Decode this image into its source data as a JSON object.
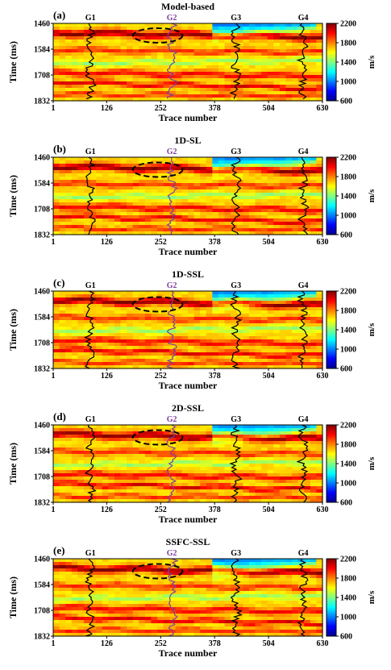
{
  "figure": {
    "colormap": [
      "#00008f",
      "#0000ff",
      "#0080ff",
      "#00ffff",
      "#80ff80",
      "#ffff00",
      "#ff8000",
      "#ff0000",
      "#800000"
    ]
  },
  "chart_data": [
    {
      "type": "heatmap",
      "panel_label": "(a)",
      "title": "Model-based",
      "xlabel": "Trace number",
      "ylabel": "Time (ms)",
      "x_ticks": [
        "1",
        "126",
        "252",
        "378",
        "504",
        "630"
      ],
      "y_ticks": [
        "1460",
        "1584",
        "1708",
        "1832"
      ],
      "xlim": [
        1,
        630
      ],
      "ylim": [
        1460,
        1832
      ],
      "colorbar": {
        "label": "m/s",
        "ticks": [
          "2200",
          "1800",
          "1400",
          "1000",
          "600"
        ],
        "range": [
          600,
          2200
        ]
      },
      "wells": [
        {
          "name": "G1",
          "trace": 88,
          "color": "#000000"
        },
        {
          "name": "G2",
          "trace": 278,
          "color": "#7b3fa0"
        },
        {
          "name": "G3",
          "trace": 428,
          "color": "#000000"
        },
        {
          "name": "G4",
          "trace": 585,
          "color": "#000000"
        }
      ],
      "ellipse": {
        "center_trace": 245,
        "center_time": 1518,
        "half_width_traces": 58,
        "half_height_ms": 35
      }
    },
    {
      "type": "heatmap",
      "panel_label": "(b)",
      "title": "1D-SL",
      "xlabel": "Trace number",
      "ylabel": "Time (ms)",
      "x_ticks": [
        "1",
        "126",
        "252",
        "378",
        "504",
        "630"
      ],
      "y_ticks": [
        "1460",
        "1584",
        "1708",
        "1832"
      ],
      "xlim": [
        1,
        630
      ],
      "ylim": [
        1460,
        1832
      ],
      "colorbar": {
        "label": "m/s",
        "ticks": [
          "2200",
          "1800",
          "1400",
          "1000",
          "600"
        ],
        "range": [
          600,
          2200
        ]
      },
      "wells": [
        {
          "name": "G1",
          "trace": 88,
          "color": "#000000"
        },
        {
          "name": "G2",
          "trace": 278,
          "color": "#7b3fa0"
        },
        {
          "name": "G3",
          "trace": 428,
          "color": "#000000"
        },
        {
          "name": "G4",
          "trace": 585,
          "color": "#000000"
        }
      ],
      "ellipse": {
        "center_trace": 245,
        "center_time": 1520,
        "half_width_traces": 58,
        "half_height_ms": 35
      }
    },
    {
      "type": "heatmap",
      "panel_label": "(c)",
      "title": "1D-SSL",
      "xlabel": "Trace number",
      "ylabel": "Time (ms)",
      "x_ticks": [
        "1",
        "126",
        "252",
        "378",
        "504",
        "630"
      ],
      "y_ticks": [
        "1460",
        "1584",
        "1708",
        "1832"
      ],
      "xlim": [
        1,
        630
      ],
      "ylim": [
        1460,
        1832
      ],
      "colorbar": {
        "label": "m/s",
        "ticks": [
          "2200",
          "1800",
          "1400",
          "1000",
          "600"
        ],
        "range": [
          600,
          2200
        ]
      },
      "wells": [
        {
          "name": "G1",
          "trace": 88,
          "color": "#000000"
        },
        {
          "name": "G2",
          "trace": 278,
          "color": "#7b3fa0"
        },
        {
          "name": "G3",
          "trace": 428,
          "color": "#000000"
        },
        {
          "name": "G4",
          "trace": 585,
          "color": "#000000"
        }
      ],
      "ellipse": {
        "center_trace": 245,
        "center_time": 1524,
        "half_width_traces": 58,
        "half_height_ms": 35
      }
    },
    {
      "type": "heatmap",
      "panel_label": "(d)",
      "title": "2D-SSL",
      "xlabel": "Trace number",
      "ylabel": "Time (ms)",
      "x_ticks": [
        "1",
        "126",
        "252",
        "378",
        "504",
        "630"
      ],
      "y_ticks": [
        "1460",
        "1584",
        "1708",
        "1832"
      ],
      "xlim": [
        1,
        630
      ],
      "ylim": [
        1460,
        1832
      ],
      "colorbar": {
        "label": "m/s",
        "ticks": [
          "2200",
          "1800",
          "1400",
          "1000",
          "600"
        ],
        "range": [
          600,
          2200
        ]
      },
      "wells": [
        {
          "name": "G1",
          "trace": 88,
          "color": "#000000"
        },
        {
          "name": "G2",
          "trace": 278,
          "color": "#7b3fa0"
        },
        {
          "name": "G3",
          "trace": 428,
          "color": "#000000"
        },
        {
          "name": "G4",
          "trace": 585,
          "color": "#000000"
        }
      ],
      "ellipse": {
        "center_trace": 245,
        "center_time": 1520,
        "half_width_traces": 58,
        "half_height_ms": 35
      }
    },
    {
      "type": "heatmap",
      "panel_label": "(e)",
      "title": "SSFC-SSL",
      "xlabel": "Trace number",
      "ylabel": "Time (ms)",
      "x_ticks": [
        "1",
        "126",
        "252",
        "378",
        "504",
        "630"
      ],
      "y_ticks": [
        "1460",
        "1584",
        "1708",
        "1832"
      ],
      "xlim": [
        1,
        630
      ],
      "ylim": [
        1460,
        1832
      ],
      "colorbar": {
        "label": "m/s",
        "ticks": [
          "2200",
          "1800",
          "1400",
          "1000",
          "600"
        ],
        "range": [
          600,
          2200
        ]
      },
      "wells": [
        {
          "name": "G1",
          "trace": 88,
          "color": "#000000"
        },
        {
          "name": "G2",
          "trace": 278,
          "color": "#7b3fa0"
        },
        {
          "name": "G3",
          "trace": 428,
          "color": "#000000"
        },
        {
          "name": "G4",
          "trace": 585,
          "color": "#000000"
        }
      ],
      "ellipse": {
        "center_trace": 245,
        "center_time": 1520,
        "half_width_traces": 58,
        "half_height_ms": 35
      }
    }
  ]
}
